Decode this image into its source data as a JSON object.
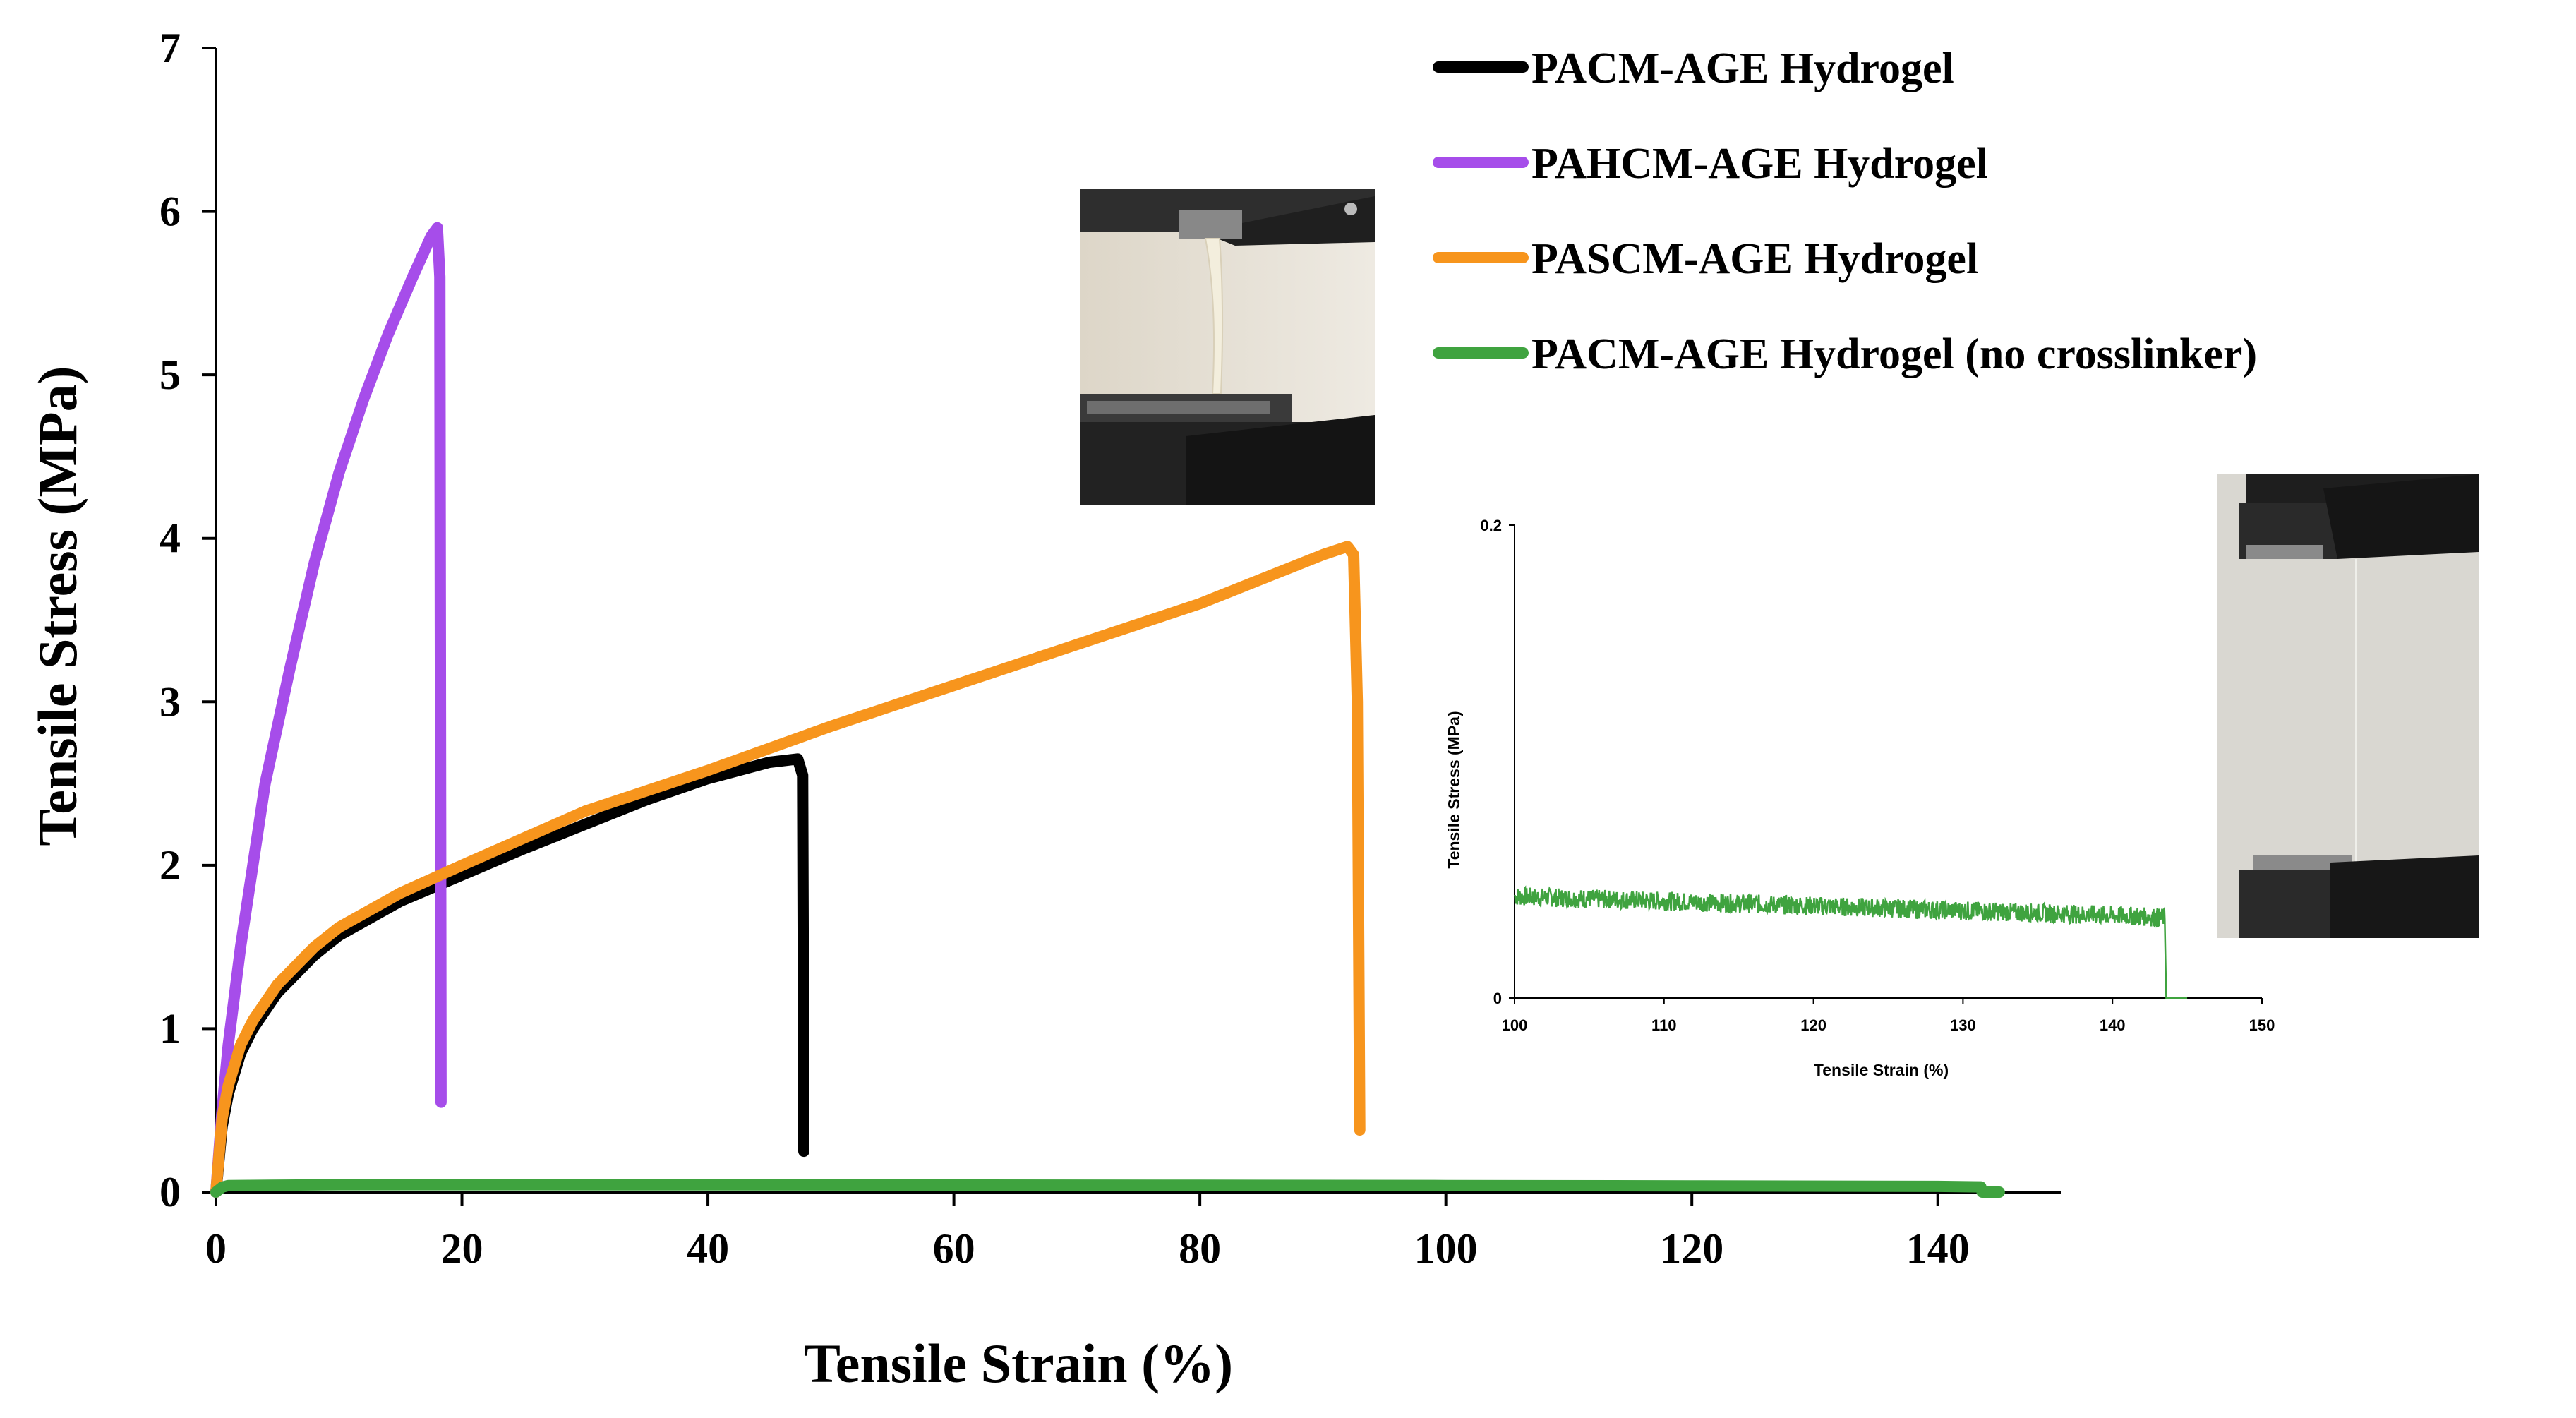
{
  "chart_data": [
    {
      "type": "line",
      "title": "",
      "xlabel": "Tensile Strain (%)",
      "ylabel": "Tensile Stress (MPa)",
      "xlim": [
        0,
        150
      ],
      "ylim": [
        0,
        7
      ],
      "xticks": [
        0,
        20,
        40,
        60,
        80,
        100,
        120,
        140
      ],
      "yticks": [
        0,
        1,
        2,
        3,
        4,
        5,
        6,
        7
      ],
      "grid": false,
      "legend_position": "top-right",
      "series": [
        {
          "name": "PACM-AGE Hydrogel",
          "color": "#000000",
          "x": [
            0,
            0.5,
            1,
            2,
            3,
            5,
            8,
            10,
            15,
            20,
            25,
            30,
            35,
            40,
            45,
            47.3,
            47.7,
            47.8
          ],
          "y": [
            0,
            0.4,
            0.6,
            0.85,
            1.0,
            1.22,
            1.45,
            1.57,
            1.78,
            1.94,
            2.1,
            2.25,
            2.4,
            2.53,
            2.63,
            2.65,
            2.55,
            0.25
          ]
        },
        {
          "name": "PAHCM-AGE Hydrogel",
          "color": "#a64dea",
          "x": [
            0,
            0.5,
            1,
            2,
            3,
            4,
            6,
            8,
            10,
            12,
            14,
            16,
            17.5,
            18,
            18.2,
            18.3
          ],
          "y": [
            0,
            0.5,
            0.9,
            1.5,
            2.0,
            2.5,
            3.2,
            3.85,
            4.4,
            4.85,
            5.25,
            5.6,
            5.85,
            5.9,
            5.6,
            0.55
          ]
        },
        {
          "name": "PASCM-AGE Hydrogel",
          "color": "#f7951d",
          "x": [
            0,
            0.5,
            1,
            2,
            3,
            5,
            8,
            10,
            15,
            20,
            30,
            40,
            50,
            60,
            70,
            80,
            90,
            92,
            92.5,
            92.8,
            93
          ],
          "y": [
            0,
            0.45,
            0.65,
            0.9,
            1.05,
            1.27,
            1.5,
            1.62,
            1.83,
            2.0,
            2.33,
            2.58,
            2.85,
            3.1,
            3.35,
            3.6,
            3.9,
            3.95,
            3.9,
            3.0,
            0.38
          ]
        },
        {
          "name": "PACM-AGE Hydrogel (no crosslinker)",
          "color": "#3fa33f",
          "x": [
            0,
            0.5,
            1,
            10,
            20,
            40,
            60,
            80,
            100,
            120,
            140,
            143.5,
            143.6,
            145
          ],
          "y": [
            0,
            0.03,
            0.04,
            0.045,
            0.045,
            0.044,
            0.043,
            0.042,
            0.04,
            0.038,
            0.035,
            0.032,
            0.0,
            0.0
          ]
        }
      ]
    },
    {
      "type": "line",
      "title": "",
      "xlabel": "Tensile Strain (%)",
      "ylabel": "Tensile Stress (MPa)",
      "xlim": [
        100,
        150
      ],
      "ylim": [
        0,
        0.2
      ],
      "xticks": [
        100,
        110,
        120,
        130,
        140,
        150
      ],
      "yticks": [
        0,
        0.2
      ],
      "grid": false,
      "legend_position": "none",
      "series": [
        {
          "color": "#3fa33f",
          "x": [
            100,
            110,
            120,
            130,
            140,
            143.5,
            143.6,
            145
          ],
          "y": [
            0.043,
            0.041,
            0.039,
            0.037,
            0.035,
            0.034,
            0.0,
            0.0
          ],
          "noise_amplitude": 0.004
        }
      ]
    }
  ]
}
